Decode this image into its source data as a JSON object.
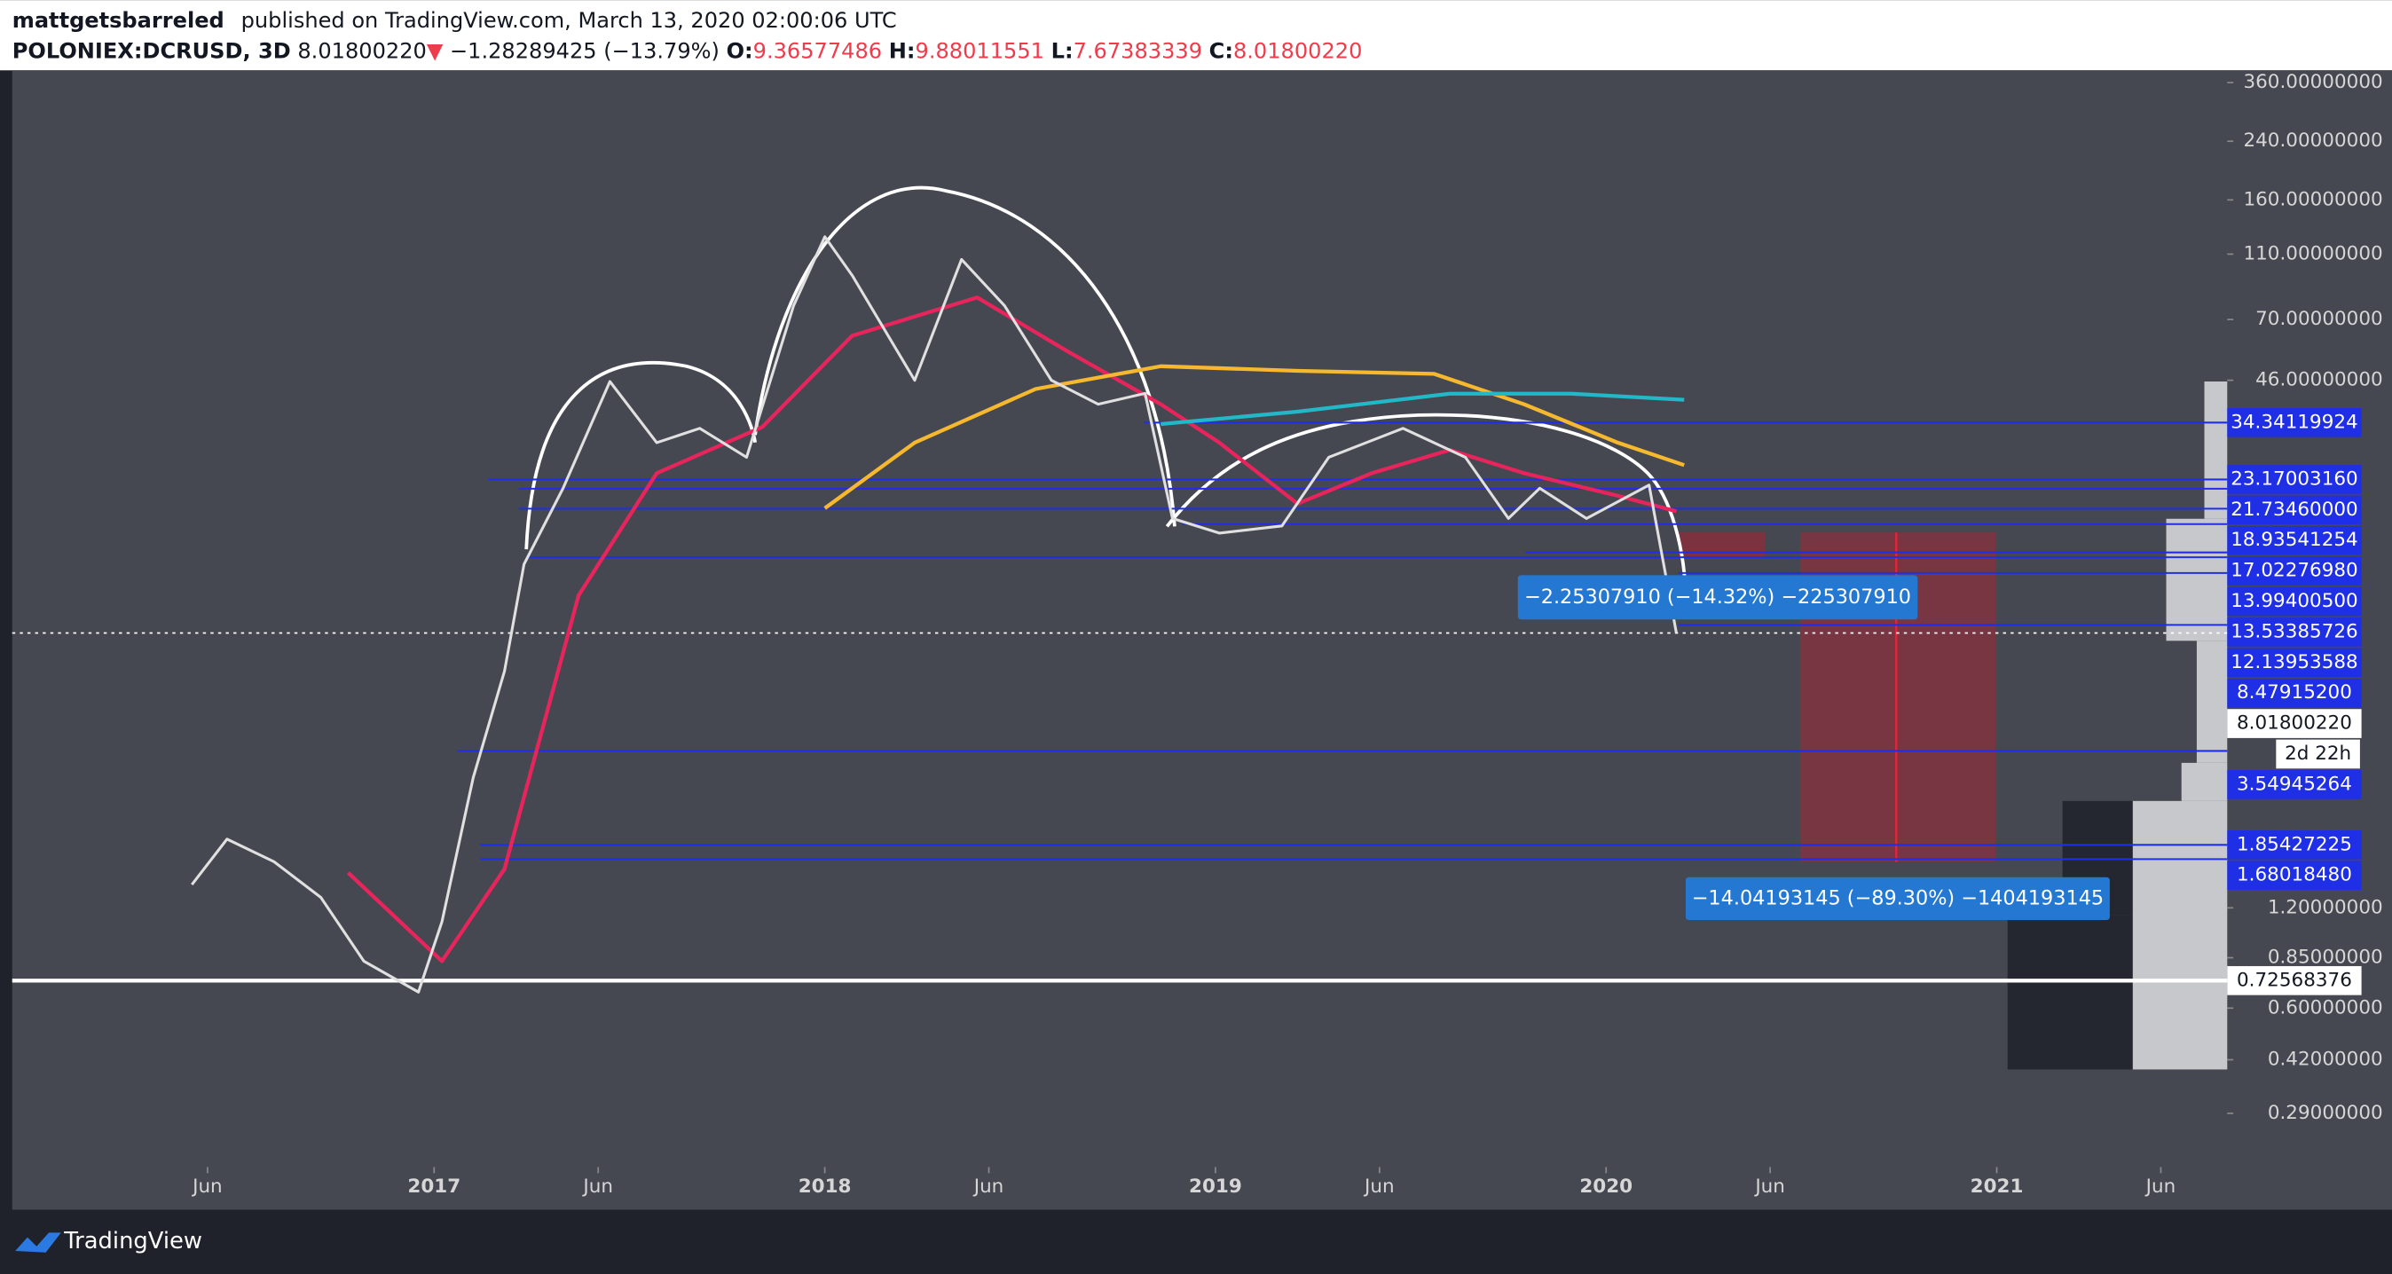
{
  "header": {
    "author": "mattgetsbarreled",
    "published": "published on TradingView.com, March 13, 2020 02:00:06 UTC",
    "symbol": "POLONIEX:DCRUSD, 3D",
    "last": "8.01800220",
    "arrow": "▼",
    "change": "−1.28289425 (−13.79%)",
    "open_label": "O:",
    "open": "9.36577486",
    "high_label": "H:",
    "high": "9.88011551",
    "low_label": "L:",
    "low": "7.67383339",
    "close_label": "C:",
    "close": "8.01800220"
  },
  "footer": {
    "brand": "TradingView"
  },
  "chart_data": {
    "type": "line",
    "log_scale": true,
    "xlim": [
      2015.92,
      2021.59
    ],
    "xticks": [
      {
        "value": 2016.42,
        "label": "Jun"
      },
      {
        "value": 2017.0,
        "label": "2017"
      },
      {
        "value": 2017.42,
        "label": "Jun"
      },
      {
        "value": 2018.0,
        "label": "2018"
      },
      {
        "value": 2018.42,
        "label": "Jun"
      },
      {
        "value": 2019.0,
        "label": "2019"
      },
      {
        "value": 2019.42,
        "label": "Jun"
      },
      {
        "value": 2020.0,
        "label": "2020"
      },
      {
        "value": 2020.42,
        "label": "Jun"
      },
      {
        "value": 2021.0,
        "label": "2021"
      },
      {
        "value": 2021.42,
        "label": "Jun"
      }
    ],
    "ylim": [
      0.2,
      396
    ],
    "yticks": [
      {
        "value": 360,
        "label": "360.00000000"
      },
      {
        "value": 240,
        "label": "240.00000000"
      },
      {
        "value": 160,
        "label": "160.00000000"
      },
      {
        "value": 110,
        "label": "110.00000000"
      },
      {
        "value": 70,
        "label": "70.00000000"
      },
      {
        "value": 46,
        "label": "46.00000000"
      },
      {
        "value": 1.2,
        "label": "1.20000000"
      },
      {
        "value": 0.85,
        "label": "0.85000000"
      },
      {
        "value": 0.6,
        "label": "0.60000000"
      },
      {
        "value": 0.42,
        "label": "0.42000000"
      },
      {
        "value": 0.29,
        "label": "0.29000000"
      }
    ],
    "price": {
      "color": "#e0e0e0",
      "x": [
        2016.38,
        2016.47,
        2016.59,
        2016.71,
        2016.82,
        2016.96,
        2017.02,
        2017.1,
        2017.18,
        2017.23,
        2017.33,
        2017.45,
        2017.57,
        2017.68,
        2017.8,
        2017.92,
        2018.0,
        2018.07,
        2018.23,
        2018.35,
        2018.46,
        2018.58,
        2018.7,
        2018.82,
        2018.89,
        2019.01,
        2019.17,
        2019.29,
        2019.48,
        2019.64,
        2019.75,
        2019.83,
        2019.95,
        2020.11,
        2020.18
      ],
      "values": [
        1.41,
        1.93,
        1.65,
        1.29,
        0.83,
        0.67,
        1.09,
        2.95,
        6.16,
        12.9,
        21.8,
        45.6,
        29.9,
        33,
        27,
        77,
        124,
        95,
        46,
        106,
        77,
        46,
        39,
        42,
        17.7,
        16.0,
        16.8,
        27,
        33,
        27,
        17.7,
        21.8,
        17.7,
        22.3,
        8.02
      ]
    },
    "moving_averages": [
      {
        "color": "#e8245c",
        "x": [
          2016.78,
          2017.02,
          2017.18,
          2017.37,
          2017.57,
          2017.84,
          2018.07,
          2018.39,
          2018.62,
          2018.86,
          2019.01,
          2019.21,
          2019.4,
          2019.6,
          2019.79,
          2020.03,
          2020.18
        ],
        "values": [
          1.53,
          0.83,
          1.57,
          10.4,
          24.2,
          33.3,
          62.6,
          81.5,
          56.3,
          39,
          29.9,
          19.6,
          24.2,
          28.4,
          24.2,
          20.7,
          18.6
        ]
      },
      {
        "color": "#f5b82e",
        "x": [
          2018.0,
          2018.23,
          2018.54,
          2018.86,
          2019.21,
          2019.56,
          2019.79,
          2020.03,
          2020.2
        ],
        "values": [
          19.0,
          29.9,
          43.3,
          50.7,
          49.1,
          48.1,
          39,
          29.9,
          25.6
        ]
      },
      {
        "color": "#22b8c8",
        "x": [
          2018.86,
          2019.21,
          2019.6,
          2019.91,
          2020.2
        ],
        "values": [
          34.0,
          37.0,
          41.9,
          41.9,
          40.2
        ]
      }
    ],
    "levels_color": "#1f2fe6",
    "levels": [
      {
        "value": 34.34119924,
        "label": "34.34119924"
      },
      {
        "value": 23.1700316,
        "label": "23.17003160"
      },
      {
        "value": 21.7346,
        "label": "21.73460000"
      },
      {
        "value": 18.93541254,
        "label": "18.93541254"
      },
      {
        "value": 17.0227698,
        "label": "17.02276980"
      },
      {
        "value": 13.994005,
        "label": "13.99400500"
      },
      {
        "value": 13.53385726,
        "label": "13.53385726"
      },
      {
        "value": 12.13953588,
        "label": "12.13953588"
      },
      {
        "value": 8.479152,
        "label": "8.47915200"
      },
      {
        "value": 3.54945264,
        "label": "3.54945264"
      },
      {
        "value": 1.85427225,
        "label": "1.85427225"
      },
      {
        "value": 1.6801848,
        "label": "1.68018480"
      }
    ],
    "current_price": {
      "value": 8.0180022,
      "label": "8.01800220"
    },
    "countdown": "2d 22h",
    "support": {
      "value": 0.72568376,
      "label": "0.72568376"
    },
    "annotations": [
      "−2.25307910 (−14.32%) −225307910",
      "−14.04193145 (−89.30%) −1404193145"
    ]
  }
}
